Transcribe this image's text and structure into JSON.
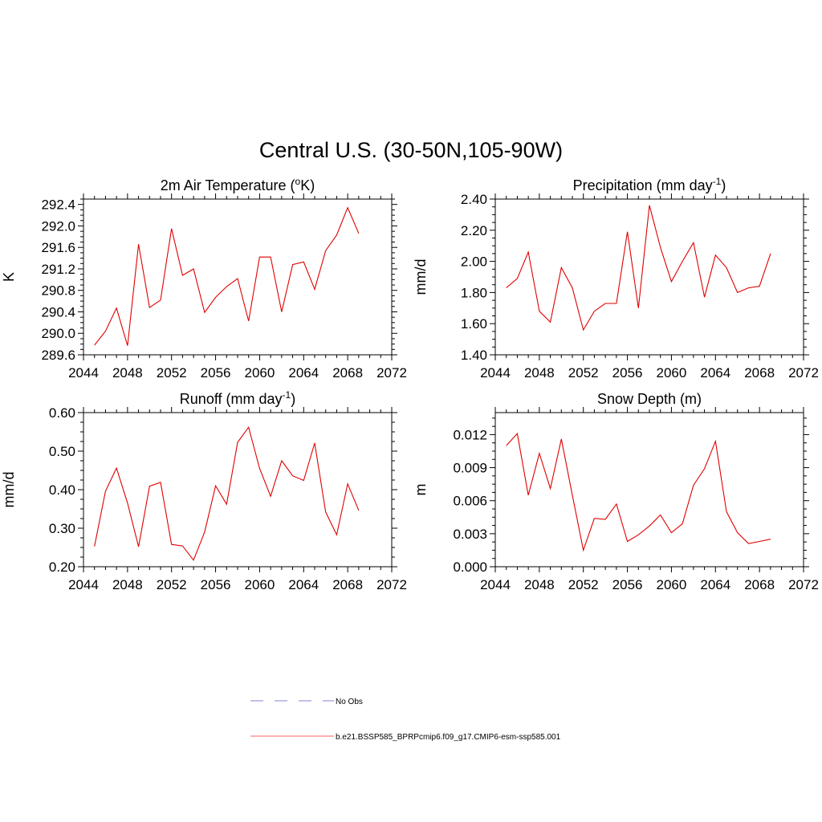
{
  "figure": {
    "title": "Central U.S. (30-50N,105-90W)"
  },
  "legend": {
    "placement": "bottom",
    "entries": [
      {
        "label": "No Obs",
        "color": "#9a9ae0",
        "dash": true
      },
      {
        "label": "b.e21.BSSP585_BPRPcmip6.f09_g17.CMIP6-esm-ssp585.001",
        "color": "#ff8080",
        "dash": false
      }
    ]
  },
  "chart_data": [
    {
      "type": "line",
      "title": "2m Air Temperature (",
      "title_sup": "o",
      "title_after": "K)",
      "ylabel": "K",
      "xlim": [
        2044,
        2072
      ],
      "ylim": [
        289.6,
        292.5
      ],
      "xticks": [
        "2044",
        "2048",
        "2052",
        "2056",
        "2060",
        "2064",
        "2068",
        "2072"
      ],
      "yticks": [
        "289.6",
        "290.0",
        "290.4",
        "290.8",
        "291.2",
        "291.6",
        "292.0",
        "292.4"
      ],
      "series": [
        {
          "color": "#e00000",
          "x": [
            2045,
            2046,
            2047,
            2048,
            2049,
            2050,
            2051,
            2052,
            2053,
            2054,
            2055,
            2056,
            2057,
            2058,
            2059,
            2060,
            2061,
            2062,
            2063,
            2064,
            2065,
            2066,
            2067,
            2068,
            2069
          ],
          "y": [
            289.78,
            290.04,
            290.47,
            289.77,
            291.66,
            290.48,
            290.62,
            291.95,
            291.08,
            291.2,
            290.39,
            290.67,
            290.87,
            291.02,
            290.23,
            291.42,
            291.42,
            290.4,
            291.28,
            291.33,
            290.82,
            291.54,
            291.83,
            292.34,
            291.86
          ]
        }
      ]
    },
    {
      "type": "line",
      "title": "Precipitation (mm day",
      "title_sup": "-1",
      "title_after": ")",
      "ylabel": "mm/d",
      "xlim": [
        2044,
        2072
      ],
      "ylim": [
        1.4,
        2.4
      ],
      "xticks": [
        "2044",
        "2048",
        "2052",
        "2056",
        "2060",
        "2064",
        "2068",
        "2072"
      ],
      "yticks": [
        "1.40",
        "1.60",
        "1.80",
        "2.00",
        "2.20",
        "2.40"
      ],
      "series": [
        {
          "color": "#e00000",
          "x": [
            2045,
            2046,
            2047,
            2048,
            2049,
            2050,
            2051,
            2052,
            2053,
            2054,
            2055,
            2056,
            2057,
            2058,
            2059,
            2060,
            2061,
            2062,
            2063,
            2064,
            2065,
            2066,
            2067,
            2068,
            2069
          ],
          "y": [
            1.83,
            1.89,
            2.06,
            1.68,
            1.61,
            1.96,
            1.83,
            1.56,
            1.68,
            1.73,
            1.73,
            2.19,
            1.7,
            2.36,
            2.09,
            1.87,
            2.0,
            2.12,
            1.77,
            2.04,
            1.96,
            1.8,
            1.83,
            1.84,
            2.05
          ]
        }
      ]
    },
    {
      "type": "line",
      "title": "Runoff (mm day",
      "title_sup": "-1",
      "title_after": ")",
      "ylabel": "mm/d",
      "xlim": [
        2044,
        2072
      ],
      "ylim": [
        0.2,
        0.6
      ],
      "xticks": [
        "2044",
        "2048",
        "2052",
        "2056",
        "2060",
        "2064",
        "2068",
        "2072"
      ],
      "yticks": [
        "0.20",
        "0.30",
        "0.40",
        "0.50",
        "0.60"
      ],
      "series": [
        {
          "color": "#e00000",
          "x": [
            2045,
            2046,
            2047,
            2048,
            2049,
            2050,
            2051,
            2052,
            2053,
            2054,
            2055,
            2056,
            2057,
            2058,
            2059,
            2060,
            2061,
            2062,
            2063,
            2064,
            2065,
            2066,
            2067,
            2068,
            2069
          ],
          "y": [
            0.253,
            0.396,
            0.456,
            0.365,
            0.252,
            0.409,
            0.419,
            0.258,
            0.254,
            0.217,
            0.29,
            0.41,
            0.362,
            0.523,
            0.562,
            0.455,
            0.383,
            0.475,
            0.436,
            0.424,
            0.521,
            0.342,
            0.283,
            0.415,
            0.346
          ]
        }
      ]
    },
    {
      "type": "line",
      "title": "Snow Depth (m)",
      "title_sup": "",
      "title_after": "",
      "ylabel": "m",
      "xlim": [
        2044,
        2072
      ],
      "ylim": [
        0.0,
        0.014
      ],
      "xticks": [
        "2044",
        "2048",
        "2052",
        "2056",
        "2060",
        "2064",
        "2068",
        "2072"
      ],
      "yticks": [
        "0.000",
        "0.003",
        "0.006",
        "0.009",
        "0.012"
      ],
      "series": [
        {
          "color": "#e00000",
          "x": [
            2045,
            2046,
            2047,
            2048,
            2049,
            2050,
            2051,
            2052,
            2053,
            2054,
            2055,
            2056,
            2057,
            2058,
            2059,
            2060,
            2061,
            2062,
            2063,
            2064,
            2065,
            2066,
            2067,
            2068,
            2069
          ],
          "y": [
            0.011,
            0.0121,
            0.0065,
            0.0103,
            0.0071,
            0.0116,
            0.0065,
            0.0015,
            0.0044,
            0.0043,
            0.0057,
            0.0023,
            0.0029,
            0.0037,
            0.0047,
            0.0031,
            0.0039,
            0.0074,
            0.0089,
            0.0114,
            0.005,
            0.0031,
            0.0021,
            0.0023,
            0.0025
          ]
        }
      ]
    }
  ]
}
